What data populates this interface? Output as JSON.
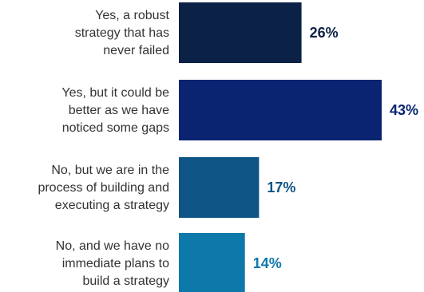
{
  "chart_data": {
    "type": "bar",
    "orientation": "horizontal",
    "categories": [
      "Yes, a robust strategy that has never failed",
      "Yes, but it could be better as we have noticed some gaps",
      "No, but we are in the process of building and executing a strategy",
      "No, and we have no immediate plans to build a strategy"
    ],
    "category_lines": [
      [
        "Yes, a robust",
        "strategy that has",
        "never failed"
      ],
      [
        "Yes, but it could be",
        "better as we have",
        "noticed some gaps"
      ],
      [
        "No, but we are in the",
        "process of building and",
        "executing a strategy"
      ],
      [
        "No, and we have no",
        "immediate plans to",
        "build a strategy"
      ]
    ],
    "values": [
      26,
      43,
      17,
      14
    ],
    "value_labels": [
      "26%",
      "43%",
      "17%",
      "14%"
    ],
    "colors": [
      "#0c2146",
      "#0a2472",
      "#0e5485",
      "#0d78aa"
    ],
    "label_colors": [
      "#0c2146",
      "#0a2472",
      "#0e5485",
      "#0d78aa"
    ],
    "xlim": [
      0,
      43
    ],
    "grid": false,
    "legend": "none"
  }
}
